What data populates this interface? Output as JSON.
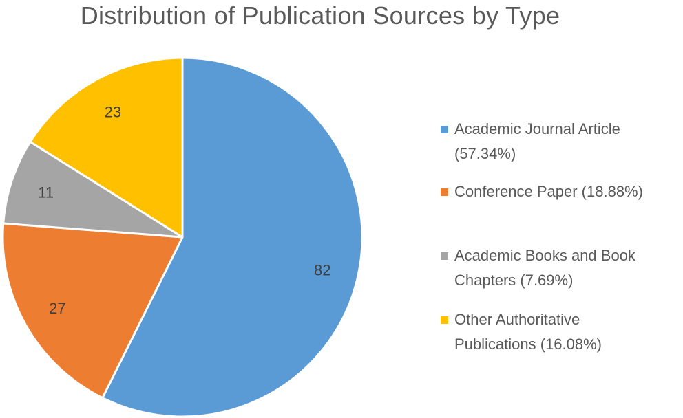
{
  "chart_data": {
    "type": "pie",
    "title": "Distribution of Publication Sources by Type",
    "slices": [
      {
        "name": "Academic Journal Article",
        "value": 82,
        "percent": "57.34%",
        "color": "#5b9bd5"
      },
      {
        "name": "Conference Paper",
        "value": 27,
        "percent": "18.88%",
        "color": "#ed7d31"
      },
      {
        "name": "Academic Books and Book Chapters",
        "value": 11,
        "percent": "7.69%",
        "color": "#a5a5a5"
      },
      {
        "name": "Other Authoritative Publications",
        "value": 23,
        "percent": "16.08%",
        "color": "#ffc000"
      }
    ],
    "legend_position": "right",
    "legend": [
      {
        "line1": "Academic Journal Article",
        "line2": "(57.34%)"
      },
      {
        "line1": "Conference Paper (18.88%)",
        "line2": ""
      },
      {
        "line1": "Academic Books and Book",
        "line2": "Chapters (7.69%)"
      },
      {
        "line1": "Other Authoritative",
        "line2": "Publications (16.08%)"
      }
    ]
  }
}
